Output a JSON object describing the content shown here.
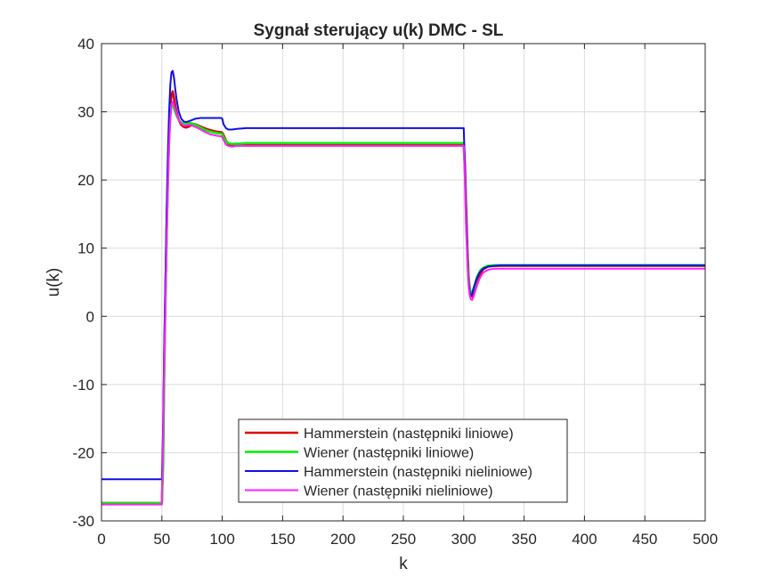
{
  "chart_data": {
    "type": "line",
    "title": "Sygnał sterujący u(k)    DMC - SL",
    "xlabel": "k",
    "ylabel": "u(k)",
    "xlim": [
      0,
      500
    ],
    "ylim": [
      -30,
      40
    ],
    "xticks": [
      0,
      50,
      100,
      150,
      200,
      250,
      300,
      350,
      400,
      450,
      500
    ],
    "yticks": [
      -30,
      -20,
      -10,
      0,
      10,
      20,
      30,
      40
    ],
    "grid": true,
    "legend_position": "bottom-center",
    "series": [
      {
        "name": "Hammerstein (następniki liniowe)",
        "color": "#e00000",
        "width": 2.6,
        "points": [
          [
            0,
            -27.4
          ],
          [
            50,
            -27.4
          ],
          [
            51,
            -20
          ],
          [
            52,
            -6
          ],
          [
            53,
            4
          ],
          [
            54,
            13
          ],
          [
            55,
            21
          ],
          [
            56,
            27
          ],
          [
            57,
            31
          ],
          [
            58,
            32.5
          ],
          [
            59,
            33
          ],
          [
            60,
            32
          ],
          [
            62,
            30
          ],
          [
            64,
            28.8
          ],
          [
            66,
            28.1
          ],
          [
            68,
            27.8
          ],
          [
            70,
            27.7
          ],
          [
            72,
            27.8
          ],
          [
            74,
            28
          ],
          [
            77,
            28.2
          ],
          [
            80,
            28
          ],
          [
            85,
            27.6
          ],
          [
            90,
            27.3
          ],
          [
            95,
            27.1
          ],
          [
            99,
            27
          ],
          [
            100,
            26.9
          ],
          [
            101,
            26.6
          ],
          [
            103,
            25.8
          ],
          [
            105,
            25.3
          ],
          [
            108,
            25.1
          ],
          [
            112,
            25.1
          ],
          [
            120,
            25.2
          ],
          [
            150,
            25.2
          ],
          [
            200,
            25.2
          ],
          [
            250,
            25.2
          ],
          [
            300,
            25.2
          ],
          [
            301,
            22
          ],
          [
            302,
            16
          ],
          [
            303,
            10
          ],
          [
            304,
            6
          ],
          [
            305,
            4
          ],
          [
            306,
            3
          ],
          [
            307,
            2.9
          ],
          [
            308,
            3.3
          ],
          [
            310,
            4.5
          ],
          [
            313,
            6
          ],
          [
            316,
            6.9
          ],
          [
            320,
            7.3
          ],
          [
            325,
            7.4
          ],
          [
            330,
            7.4
          ],
          [
            350,
            7.4
          ],
          [
            400,
            7.4
          ],
          [
            450,
            7.4
          ],
          [
            500,
            7.4
          ]
        ]
      },
      {
        "name": "Wiener (następniki liniowe)",
        "color": "#00ee00",
        "width": 2.6,
        "points": [
          [
            0,
            -27.4
          ],
          [
            50,
            -27.4
          ],
          [
            51,
            -22
          ],
          [
            52,
            -8
          ],
          [
            53,
            3
          ],
          [
            54,
            12
          ],
          [
            55,
            20
          ],
          [
            56,
            26
          ],
          [
            57,
            29.5
          ],
          [
            58,
            31
          ],
          [
            59,
            31.2
          ],
          [
            60,
            30.5
          ],
          [
            62,
            29.5
          ],
          [
            64,
            28.8
          ],
          [
            66,
            28.4
          ],
          [
            68,
            28.3
          ],
          [
            70,
            28.3
          ],
          [
            72,
            28.4
          ],
          [
            75,
            28.3
          ],
          [
            80,
            27.9
          ],
          [
            85,
            27.4
          ],
          [
            90,
            27.1
          ],
          [
            95,
            26.9
          ],
          [
            99,
            26.8
          ],
          [
            100,
            26.7
          ],
          [
            101,
            26.3
          ],
          [
            103,
            25.7
          ],
          [
            105,
            25.4
          ],
          [
            108,
            25.3
          ],
          [
            112,
            25.3
          ],
          [
            120,
            25.4
          ],
          [
            150,
            25.4
          ],
          [
            200,
            25.4
          ],
          [
            250,
            25.4
          ],
          [
            300,
            25.4
          ],
          [
            301,
            21
          ],
          [
            302,
            14
          ],
          [
            303,
            9
          ],
          [
            304,
            5.5
          ],
          [
            305,
            4
          ],
          [
            306,
            3.4
          ],
          [
            307,
            3.5
          ],
          [
            309,
            4.5
          ],
          [
            311,
            5.8
          ],
          [
            314,
            6.8
          ],
          [
            317,
            7.2
          ],
          [
            320,
            7.4
          ],
          [
            325,
            7.5
          ],
          [
            330,
            7.5
          ],
          [
            350,
            7.5
          ],
          [
            400,
            7.5
          ],
          [
            450,
            7.5
          ],
          [
            500,
            7.5
          ]
        ]
      },
      {
        "name": "Hammerstein (następniki nieliniowe)",
        "color": "#1010e0",
        "width": 2.0,
        "points": [
          [
            0,
            -23.9
          ],
          [
            50,
            -23.9
          ],
          [
            51,
            -16
          ],
          [
            52,
            -4
          ],
          [
            53,
            6
          ],
          [
            54,
            16
          ],
          [
            55,
            24
          ],
          [
            56,
            30
          ],
          [
            57,
            34
          ],
          [
            58,
            35.8
          ],
          [
            59,
            36
          ],
          [
            60,
            35
          ],
          [
            61,
            33.5
          ],
          [
            62,
            32
          ],
          [
            64,
            30
          ],
          [
            66,
            29
          ],
          [
            68,
            28.6
          ],
          [
            70,
            28.5
          ],
          [
            72,
            28.6
          ],
          [
            75,
            28.8
          ],
          [
            78,
            29
          ],
          [
            82,
            29.1
          ],
          [
            90,
            29.1
          ],
          [
            95,
            29.1
          ],
          [
            99,
            29.1
          ],
          [
            100,
            29
          ],
          [
            101,
            28.2
          ],
          [
            103,
            27.6
          ],
          [
            105,
            27.4
          ],
          [
            108,
            27.4
          ],
          [
            112,
            27.5
          ],
          [
            120,
            27.6
          ],
          [
            150,
            27.6
          ],
          [
            200,
            27.6
          ],
          [
            250,
            27.6
          ],
          [
            300,
            27.6
          ],
          [
            301,
            22
          ],
          [
            302,
            15
          ],
          [
            303,
            9
          ],
          [
            304,
            5
          ],
          [
            305,
            3.5
          ],
          [
            306,
            3
          ],
          [
            307,
            3.3
          ],
          [
            308,
            4
          ],
          [
            310,
            5.2
          ],
          [
            313,
            6.4
          ],
          [
            316,
            7
          ],
          [
            320,
            7.3
          ],
          [
            325,
            7.4
          ],
          [
            330,
            7.5
          ],
          [
            350,
            7.5
          ],
          [
            400,
            7.5
          ],
          [
            450,
            7.5
          ],
          [
            500,
            7.5
          ]
        ]
      },
      {
        "name": "Wiener (następniki nieliniowe)",
        "color": "#ff20ff",
        "width": 2.0,
        "points": [
          [
            0,
            -27.6
          ],
          [
            50,
            -27.6
          ],
          [
            51,
            -18
          ],
          [
            52,
            -7
          ],
          [
            53,
            2
          ],
          [
            54,
            11
          ],
          [
            55,
            19
          ],
          [
            56,
            25
          ],
          [
            57,
            29
          ],
          [
            58,
            31
          ],
          [
            59,
            31.5
          ],
          [
            60,
            31
          ],
          [
            62,
            29.8
          ],
          [
            64,
            28.8
          ],
          [
            66,
            28.3
          ],
          [
            68,
            28
          ],
          [
            70,
            28
          ],
          [
            72,
            28.1
          ],
          [
            75,
            28
          ],
          [
            80,
            27.6
          ],
          [
            85,
            27.1
          ],
          [
            90,
            26.7
          ],
          [
            95,
            26.5
          ],
          [
            99,
            26.4
          ],
          [
            100,
            26.3
          ],
          [
            101,
            25.9
          ],
          [
            103,
            25.2
          ],
          [
            105,
            25
          ],
          [
            108,
            24.9
          ],
          [
            112,
            25
          ],
          [
            120,
            25
          ],
          [
            150,
            25
          ],
          [
            200,
            25
          ],
          [
            250,
            25
          ],
          [
            300,
            25
          ],
          [
            301,
            20
          ],
          [
            302,
            13
          ],
          [
            303,
            8
          ],
          [
            304,
            4.5
          ],
          [
            305,
            3
          ],
          [
            306,
            2.5
          ],
          [
            307,
            2.4
          ],
          [
            308,
            2.8
          ],
          [
            310,
            4
          ],
          [
            313,
            5.5
          ],
          [
            316,
            6.4
          ],
          [
            320,
            6.8
          ],
          [
            325,
            7
          ],
          [
            330,
            7
          ],
          [
            350,
            7
          ],
          [
            400,
            7
          ],
          [
            450,
            7
          ],
          [
            500,
            7
          ]
        ]
      }
    ]
  }
}
